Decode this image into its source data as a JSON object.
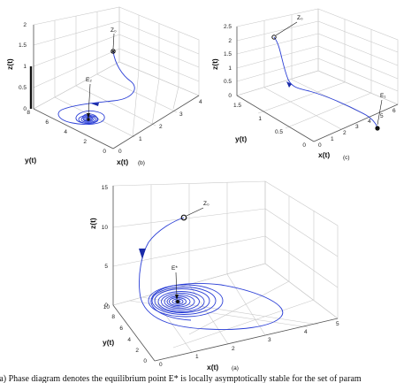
{
  "chart_data": [
    {
      "type": "line",
      "panel_label": "(b)",
      "xlabel": "x(t)",
      "ylabel": "y(t)",
      "zlabel": "z(t)",
      "x_ticks": [
        "0",
        "1",
        "2",
        "3",
        "4"
      ],
      "y_ticks": [
        "0",
        "2",
        "4",
        "6",
        "8"
      ],
      "z_ticks": [
        "0",
        "0.5",
        "1",
        "1.5",
        "2"
      ],
      "annotations": {
        "start": "Z₀",
        "equilibrium": "E₂"
      }
    },
    {
      "type": "line",
      "panel_label": "(c)",
      "xlabel": "x(t)",
      "ylabel": "y(t)",
      "zlabel": "z(t)",
      "x_ticks": [
        "0",
        "1",
        "2",
        "3",
        "4",
        "5",
        "6"
      ],
      "y_ticks": [
        "0",
        "0.5",
        "1",
        "1.5"
      ],
      "z_ticks": [
        "0",
        "0.5",
        "1",
        "1.5",
        "2",
        "2.5"
      ],
      "annotations": {
        "start": "Z₀",
        "equilibrium": "E₁"
      }
    },
    {
      "type": "line",
      "panel_label": "(a)",
      "xlabel": "x(t)",
      "ylabel": "y(t)",
      "zlabel": "z(t)",
      "x_ticks": [
        "0",
        "1",
        "2",
        "3",
        "4",
        "5"
      ],
      "y_ticks": [
        "0",
        "2",
        "4",
        "6",
        "8",
        "10"
      ],
      "z_ticks": [
        "0",
        "5",
        "10",
        "15"
      ],
      "annotations": {
        "start": "Z₀",
        "equilibrium": "E*"
      }
    }
  ],
  "caption": "(a) Phase diagram denotes the equilibrium point E* is locally asymptotically stable for the set of param",
  "colors": {
    "trajectory": "#2b3fd6",
    "grid": "#c9c9c9"
  }
}
